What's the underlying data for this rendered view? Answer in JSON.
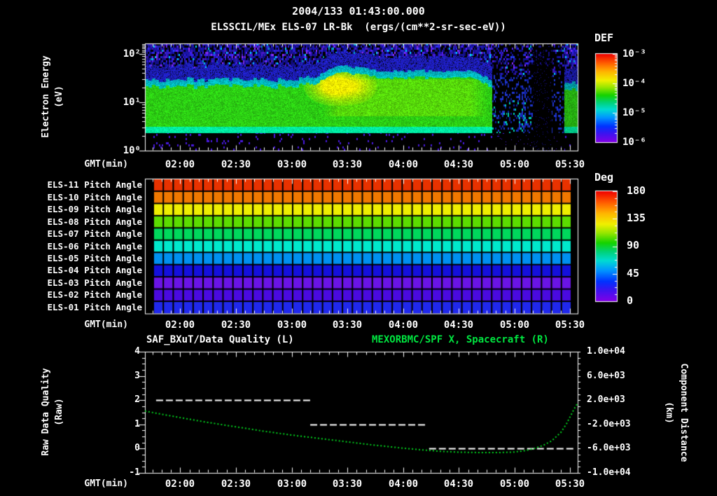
{
  "header": {
    "title": "2004/133 01:43:00.000",
    "subtitle": "ELSSCIL/MEx ELS-07 LR-Bk  (ergs/(cm**2-sr-sec-eV))"
  },
  "time_axis": {
    "label": "GMT(min)",
    "ticks": [
      "02:00",
      "02:30",
      "03:00",
      "03:30",
      "04:00",
      "04:30",
      "05:00",
      "05:30"
    ],
    "start": "01:41",
    "end": "05:34",
    "minor_step_min": 5
  },
  "top_panel": {
    "ylabel": "Electron Energy",
    "ylabel_units": "(eV)",
    "yticks": [
      "10²",
      "10¹",
      "10⁰"
    ],
    "colorbar": {
      "title": "DEF",
      "ticks": [
        "10⁻³",
        "10⁻⁴",
        "10⁻⁵",
        "10⁻⁶"
      ]
    }
  },
  "middle_panel": {
    "rows": [
      "ELS-11 Pitch Angle",
      "ELS-10 Pitch Angle",
      "ELS-09 Pitch Angle",
      "ELS-08 Pitch Angle",
      "ELS-07 Pitch Angle",
      "ELS-06 Pitch Angle",
      "ELS-05 Pitch Angle",
      "ELS-04 Pitch Angle",
      "ELS-03 Pitch Angle",
      "ELS-02 Pitch Angle",
      "ELS-01 Pitch Angle"
    ],
    "colorbar": {
      "title": "Deg",
      "ticks": [
        "180",
        "135",
        "90",
        "45",
        "0"
      ]
    }
  },
  "bottom_panel": {
    "title_left": "SAF_BXuT/Data Quality (L)",
    "title_right": "MEXORBMC/SPF X, Spacecraft (R)",
    "ylabel_left": "Raw Data Quality",
    "ylabel_left_units": "(Raw)",
    "ylabel_right": "Component Distance",
    "ylabel_right_units": "(km)",
    "yticks_left": [
      "4",
      "3",
      "2",
      "1",
      "0",
      "-1"
    ],
    "yticks_right": [
      "1.0e+04",
      "6.0e+03",
      "2.0e+03",
      "-2.0e+03",
      "-6.0e+03",
      "-1.0e+04"
    ]
  },
  "colors": {
    "background": "#000000",
    "text": "#ffffff",
    "green_title": "#00e640",
    "curve_green": "#00d41e",
    "quality_white": "#ffffff"
  },
  "chart_data": [
    {
      "type": "heatmap",
      "name": "electron-energy-spectrogram",
      "title": "ELSSCIL/MEx ELS-07 LR-Bk",
      "units": "ergs/(cm**2-sr-sec-eV)",
      "xlabel": "GMT(min)",
      "ylabel": "Electron Energy (eV)",
      "x_ticks": [
        "02:00",
        "02:30",
        "03:00",
        "03:30",
        "04:00",
        "04:30",
        "05:00",
        "05:30"
      ],
      "time_range_min": [
        101,
        334
      ],
      "y_scale": "log",
      "y_range_ev": [
        1,
        165
      ],
      "color_scale": {
        "label": "DEF",
        "scale": "log",
        "range": [
          1e-06,
          0.001
        ],
        "colormap": "rainbow",
        "tick_labels": [
          "10⁻³",
          "10⁻⁴",
          "10⁻⁵",
          "10⁻⁶"
        ]
      },
      "bands": [
        {
          "energy_ev": [
            1,
            2.25
          ],
          "flux": "below floor",
          "color": "#000000",
          "speckle_color": "#4618dc"
        },
        {
          "energy_ev": [
            2.25,
            3.0
          ],
          "flux": "~1e-4",
          "color": "#00f0a4",
          "description": "bright cold-electron line"
        },
        {
          "energy_ev": [
            3,
            21
          ],
          "flux": "~6e-5",
          "color": "#2dd014",
          "description": "core green band"
        },
        {
          "energy_ev": [
            21,
            30
          ],
          "flux": "~1.5e-5",
          "color": "#00d4cc",
          "description": "cyan fringe"
        },
        {
          "energy_ev": [
            30,
            55
          ],
          "flux": "~3e-6",
          "color": "#2424e0",
          "description": "blue halo"
        },
        {
          "energy_ev": [
            55,
            165
          ],
          "flux": "~1e-6",
          "palette": [
            "#141094",
            "#2b1cc4",
            "#4a1ad0",
            "#7a28e6",
            "#2038e0",
            "#00b4e0"
          ],
          "description": "speckled noise floor"
        }
      ],
      "events": [
        {
          "name": "flux enhancement",
          "t": [
            "03:12",
            "03:46"
          ],
          "t_min": [
            192,
            226
          ],
          "peak_min": 203,
          "secondary_peak_min": 216,
          "energy_ev": [
            10,
            48
          ],
          "color": "#f8f000"
        },
        {
          "name": "elevated warm band",
          "t": [
            "03:17",
            "04:46"
          ],
          "t_min": [
            197,
            286
          ],
          "energy_top_ev": 32,
          "color": "#8ce800"
        },
        {
          "name": "dropout with faint blue columns",
          "t": [
            "04:48",
            "05:10"
          ],
          "t_min": [
            288,
            310
          ],
          "colors": [
            "#1e34cc",
            "#00ccb0",
            "#0f1e9e"
          ]
        },
        {
          "name": "deep dropout",
          "t": [
            "05:10",
            "05:20"
          ],
          "t_min": [
            310,
            320
          ],
          "color": "#160f90"
        },
        {
          "name": "partial dropout",
          "t": [
            "05:20",
            "05:27"
          ],
          "t_min": [
            320,
            327
          ],
          "colors": [
            "#1e34cc",
            "#0f1e9e"
          ]
        },
        {
          "name": "flux recovery",
          "t": [
            "05:27",
            "05:34"
          ],
          "t_min": [
            327,
            334
          ]
        }
      ]
    },
    {
      "type": "heatmap",
      "name": "pitch-angle-panel",
      "x_ticks": [
        "02:00",
        "02:30",
        "03:00",
        "03:30",
        "04:00",
        "04:30",
        "05:00",
        "05:30"
      ],
      "columns": 42,
      "color_scale": {
        "label": "Deg",
        "range": [
          0,
          180
        ],
        "colormap": "rainbow",
        "tick_labels": [
          "180",
          "135",
          "90",
          "45",
          "0"
        ]
      },
      "rows": [
        {
          "label": "ELS-11 Pitch Angle",
          "approx_deg": 166,
          "color": "#e83200"
        },
        {
          "label": "ELS-10 Pitch Angle",
          "approx_deg": 150,
          "color": "#f07800"
        },
        {
          "label": "ELS-09 Pitch Angle",
          "approx_deg": 133,
          "color": "#eeee00"
        },
        {
          "label": "ELS-08 Pitch Angle",
          "approx_deg": 116,
          "color": "#5cdc00"
        },
        {
          "label": "ELS-07 Pitch Angle",
          "approx_deg": 99,
          "color": "#00d85c"
        },
        {
          "label": "ELS-06 Pitch Angle",
          "approx_deg": 81,
          "color": "#00e8cc"
        },
        {
          "label": "ELS-05 Pitch Angle",
          "approx_deg": 62,
          "color": "#0090f0"
        },
        {
          "label": "ELS-04 Pitch Angle",
          "approx_deg": 44,
          "color": "#1410dc"
        },
        {
          "label": "ELS-03 Pitch Angle",
          "approx_deg": 18,
          "color": "#6a14e6"
        },
        {
          "label": "ELS-02 Pitch Angle",
          "approx_deg": 30,
          "color": "#4a0ae0"
        },
        {
          "label": "ELS-01 Pitch Angle",
          "approx_deg": 47,
          "color": "#2028ec"
        }
      ],
      "notes": "row colors constant across time; black data-gap strips at left and right edges"
    },
    {
      "type": "line",
      "name": "quality-and-distance",
      "title_left": "SAF_BXuT/Data Quality (L)",
      "title_right": "MEXORBMC/SPF X, Spacecraft (R)",
      "x_ticks": [
        "02:00",
        "02:30",
        "03:00",
        "03:30",
        "04:00",
        "04:30",
        "05:00",
        "05:30"
      ],
      "y_left": {
        "label": "Raw Data Quality (Raw)",
        "range": [
          -1,
          4
        ]
      },
      "y_right": {
        "label": "Component Distance (km)",
        "range": [
          -10000,
          10000
        ]
      },
      "series": [
        {
          "name": "SAF_BXuT/Data Quality (L)",
          "axis": "left",
          "style": "dashed",
          "color": "#ffffff",
          "segments": [
            {
              "value": 2,
              "t": [
                "01:47",
                "03:10"
              ],
              "t_min": [
                107,
                190
              ]
            },
            {
              "value": 1,
              "t": [
                "03:10",
                "04:13"
              ],
              "t_min": [
                190,
                253
              ]
            },
            {
              "value": 0,
              "t": [
                "04:14",
                "05:32"
              ],
              "t_min": [
                254,
                332
              ]
            }
          ]
        },
        {
          "name": "MEXORBMC/SPF X, Spacecraft (R)",
          "axis": "right",
          "style": "dotted",
          "color": "#00d41e",
          "points_min_km": [
            [
              101,
              200
            ],
            [
              110,
              -320
            ],
            [
              120,
              -880
            ],
            [
              135,
              -1680
            ],
            [
              150,
              -2400
            ],
            [
              165,
              -3120
            ],
            [
              180,
              -3760
            ],
            [
              195,
              -4320
            ],
            [
              210,
              -4880
            ],
            [
              225,
              -5440
            ],
            [
              240,
              -5920
            ],
            [
              250,
              -6200
            ],
            [
              260,
              -6440
            ],
            [
              270,
              -6580
            ],
            [
              280,
              -6640
            ],
            [
              290,
              -6660
            ],
            [
              300,
              -6560
            ],
            [
              305,
              -6360
            ],
            [
              310,
              -6040
            ],
            [
              315,
              -5520
            ],
            [
              320,
              -4720
            ],
            [
              325,
              -3300
            ],
            [
              328,
              -1900
            ],
            [
              330,
              -700
            ],
            [
              332,
              500
            ],
            [
              334,
              1500
            ]
          ]
        }
      ]
    }
  ]
}
